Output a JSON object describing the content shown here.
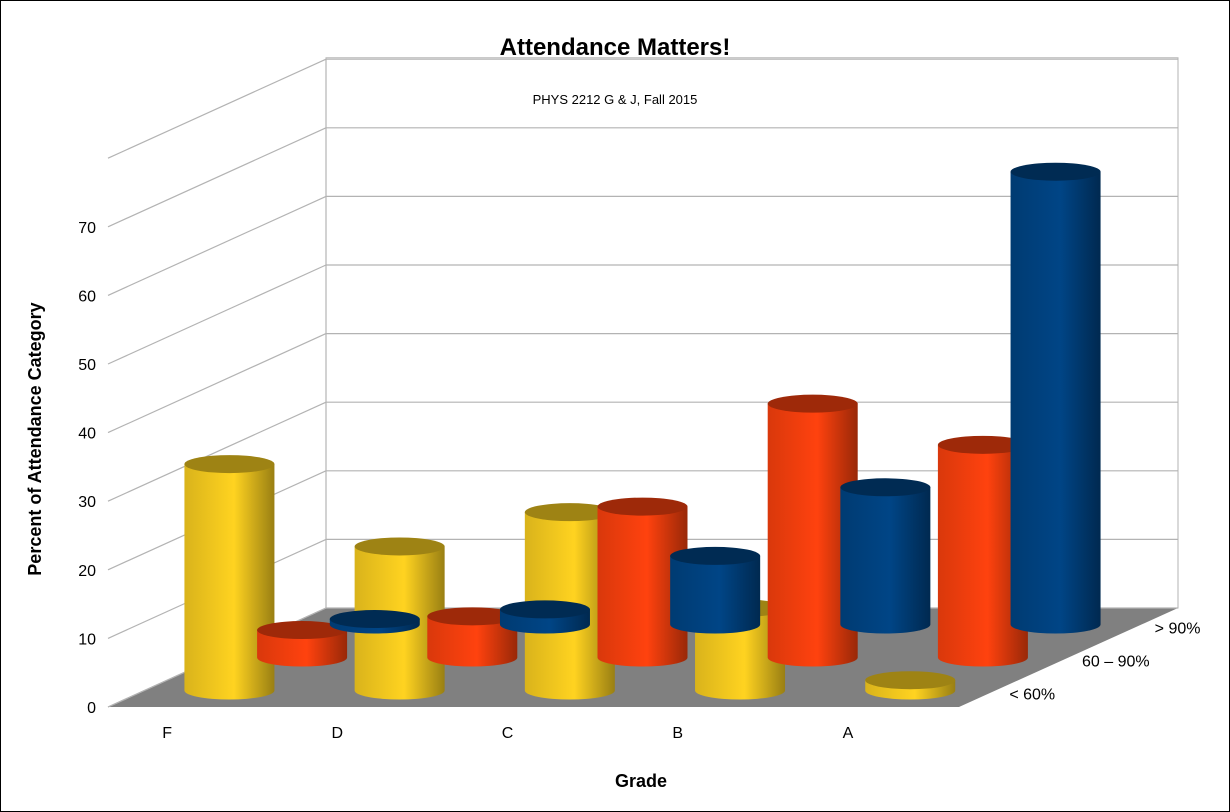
{
  "chart_data": {
    "type": "bar",
    "style": "3d-cylinder",
    "title": "Attendance Matters!",
    "subtitle": "PHYS 2212 G & J, Fall 2015",
    "xlabel": "Grade",
    "ylabel": "Percent of Attendance Category",
    "categories": [
      "F",
      "D",
      "C",
      "B",
      "A"
    ],
    "ylim": [
      0,
      70
    ],
    "yticks": [
      0,
      10,
      20,
      30,
      40,
      50,
      60,
      70
    ],
    "grid": true,
    "series": [
      {
        "name": "> 90%",
        "color": "#004586",
        "values": [
          0.8,
          2.2,
          10,
          20,
          66
        ]
      },
      {
        "name": "60 – 90%",
        "color": "#ff420e",
        "values": [
          4,
          6,
          22,
          37,
          31
        ]
      },
      {
        "name": "< 60%",
        "color": "#ffd320",
        "values": [
          33,
          21,
          26,
          12,
          1.5
        ]
      }
    ],
    "series_axis_labels_back_to_front": [
      "< 60%",
      "60 – 90%",
      "> 90%"
    ]
  }
}
